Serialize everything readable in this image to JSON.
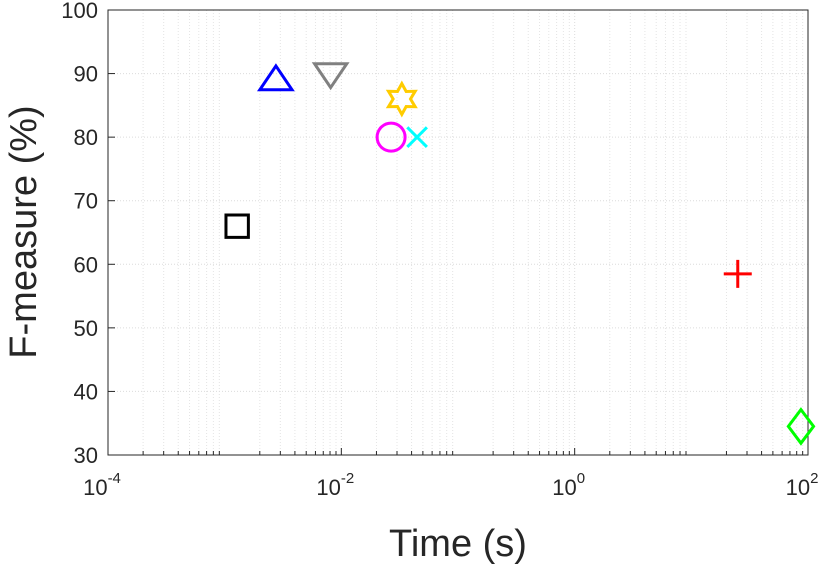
{
  "chart_data": {
    "type": "scatter",
    "x_label": "Time (s)",
    "y_label": "F-measure (%)",
    "xscale": "log",
    "grid": true,
    "xlim": [
      0.0001,
      100
    ],
    "ylim": [
      30,
      100
    ],
    "xticks": [
      {
        "value": 0.0001,
        "label": "10",
        "exponent": "-4"
      },
      {
        "value": 0.01,
        "label": "10",
        "exponent": "-2"
      },
      {
        "value": 1,
        "label": "10",
        "exponent": "0"
      },
      {
        "value": 100,
        "label": "10",
        "exponent": "2"
      }
    ],
    "yticks": [
      30,
      40,
      50,
      60,
      70,
      80,
      90,
      100
    ],
    "series": [
      {
        "color": "#000000",
        "marker": "square",
        "x": [
          0.00128
        ],
        "values": [
          66
        ]
      },
      {
        "color": "#0000ff",
        "marker": "triangle-up",
        "x": [
          0.00275
        ],
        "values": [
          89
        ]
      },
      {
        "color": "#808080",
        "marker": "triangle-down",
        "x": [
          0.0081
        ],
        "values": [
          90
        ]
      },
      {
        "color": "#ffcc00",
        "marker": "hexagram",
        "x": [
          0.033
        ],
        "values": [
          86
        ]
      },
      {
        "color": "#ff00ff",
        "marker": "circle",
        "x": [
          0.0267
        ],
        "values": [
          80
        ]
      },
      {
        "color": "#00ffff",
        "marker": "x",
        "x": [
          0.0446
        ],
        "values": [
          80
        ]
      },
      {
        "color": "#ff0000",
        "marker": "plus",
        "x": [
          25
        ],
        "values": [
          58.5
        ]
      },
      {
        "color": "#00ff00",
        "marker": "diamond",
        "x": [
          87
        ],
        "values": [
          34.5
        ]
      }
    ]
  }
}
